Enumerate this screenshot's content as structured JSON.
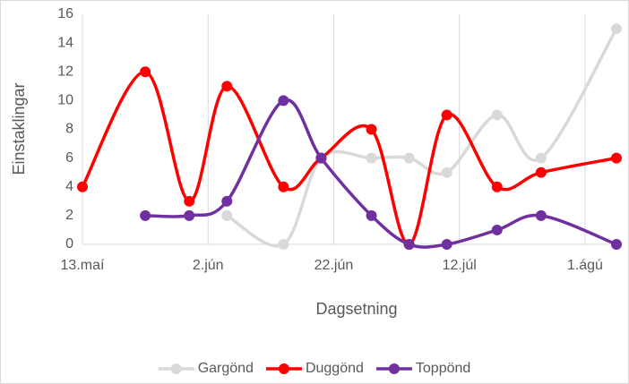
{
  "chart_data": {
    "type": "line",
    "xlabel": "Dagsetning",
    "ylabel": "Einstaklingar",
    "x": [
      "05-13",
      "05-23",
      "05-30",
      "06-05",
      "06-14",
      "06-20",
      "06-28",
      "07-04",
      "07-10",
      "07-18",
      "07-25",
      "08-06"
    ],
    "series": [
      {
        "name": "Gargönd",
        "color": "#d9d9d9",
        "values": [
          null,
          null,
          null,
          2,
          0,
          6,
          6,
          6,
          5,
          9,
          6,
          15
        ]
      },
      {
        "name": "Duggönd",
        "color": "#ff0000",
        "values": [
          4,
          12,
          3,
          11,
          4,
          6,
          8,
          0,
          9,
          4,
          5,
          6
        ]
      },
      {
        "name": "Toppönd",
        "color": "#7030a0",
        "values": [
          null,
          2,
          2,
          3,
          10,
          6,
          2,
          0,
          0,
          1,
          2,
          0
        ]
      }
    ],
    "xlim": [
      "05-13",
      "08-07"
    ],
    "xticks": [
      {
        "value": "05-13",
        "label": "13.maí"
      },
      {
        "value": "06-02",
        "label": "2.jún"
      },
      {
        "value": "06-22",
        "label": "22.jún"
      },
      {
        "value": "07-12",
        "label": "12.júl"
      },
      {
        "value": "08-01",
        "label": "1.ágú"
      }
    ],
    "ylim": [
      0,
      16
    ],
    "yticks": [
      0,
      2,
      4,
      6,
      8,
      10,
      12,
      14,
      16
    ],
    "grid": "x",
    "smooth": true,
    "legend": "bottom"
  }
}
